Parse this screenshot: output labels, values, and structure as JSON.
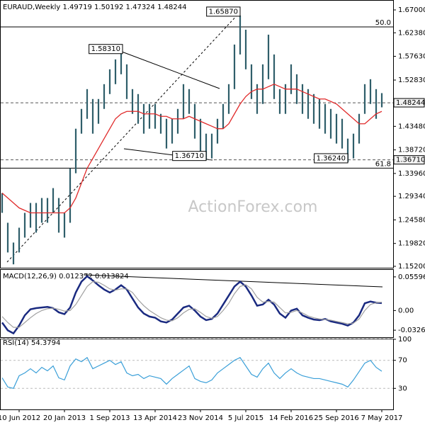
{
  "chart_data": [
    {
      "type": "hlbar",
      "title": "EURAUD,Weekly  1.49719 1.50192 1.47324 1.48244",
      "watermark": "ActionForex.com",
      "categories": [
        null,
        null,
        null,
        "10 Jun 2012",
        null,
        null,
        null,
        null,
        null,
        null,
        null,
        "20 Jan 2013",
        null,
        null,
        null,
        null,
        null,
        null,
        null,
        "1 Sep 2013",
        null,
        null,
        null,
        null,
        null,
        null,
        null,
        "13 Apr 2014",
        null,
        null,
        null,
        null,
        null,
        null,
        null,
        "23 Nov 2014",
        null,
        null,
        null,
        null,
        null,
        null,
        null,
        "5 Jul 2015",
        null,
        null,
        null,
        null,
        null,
        null,
        null,
        "14 Feb 2016",
        null,
        null,
        null,
        null,
        null,
        null,
        null,
        "25 Sep 2016",
        null,
        null,
        null,
        null,
        null,
        null,
        null,
        "7 May 2017"
      ],
      "high": [
        1.3,
        1.24,
        1.2,
        1.23,
        1.26,
        1.28,
        1.28,
        1.29,
        1.29,
        1.31,
        1.29,
        1.26,
        1.35,
        1.43,
        1.47,
        1.51,
        1.49,
        1.49,
        1.52,
        1.55,
        1.57,
        1.5831,
        1.56,
        1.51,
        1.5,
        1.48,
        1.48,
        1.48,
        1.46,
        1.45,
        1.45,
        1.47,
        1.52,
        1.51,
        1.48,
        1.45,
        1.42,
        1.42,
        1.45,
        1.48,
        1.52,
        1.6,
        1.6587,
        1.63,
        1.56,
        1.52,
        1.56,
        1.62,
        1.58,
        1.51,
        1.52,
        1.56,
        1.54,
        1.52,
        1.51,
        1.5,
        1.49,
        1.48,
        1.47,
        1.46,
        1.45,
        1.41,
        1.42,
        1.46,
        1.52,
        1.53,
        1.51,
        1.50192
      ],
      "low": [
        1.26,
        1.18,
        1.156,
        1.18,
        1.21,
        1.23,
        1.22,
        1.24,
        1.24,
        1.26,
        1.22,
        1.21,
        1.24,
        1.34,
        1.42,
        1.45,
        1.42,
        1.44,
        1.47,
        1.5,
        1.52,
        1.54,
        1.49,
        1.46,
        1.44,
        1.42,
        1.43,
        1.43,
        1.42,
        1.39,
        1.4,
        1.42,
        1.45,
        1.46,
        1.41,
        1.38,
        1.3671,
        1.37,
        1.4,
        1.43,
        1.46,
        1.51,
        1.58,
        1.55,
        1.49,
        1.46,
        1.48,
        1.53,
        1.49,
        1.46,
        1.46,
        1.5,
        1.48,
        1.46,
        1.45,
        1.44,
        1.43,
        1.42,
        1.41,
        1.4,
        1.39,
        1.3624,
        1.37,
        1.4,
        1.46,
        1.48,
        1.45,
        1.47324
      ],
      "color": "#2f5e6a",
      "ma": {
        "color": "#e02a2a",
        "values": [
          1.3,
          1.29,
          1.28,
          1.27,
          1.265,
          1.26,
          1.26,
          1.26,
          1.26,
          1.26,
          1.26,
          1.26,
          1.27,
          1.29,
          1.32,
          1.35,
          1.37,
          1.39,
          1.41,
          1.43,
          1.45,
          1.46,
          1.465,
          1.465,
          1.465,
          1.46,
          1.46,
          1.46,
          1.455,
          1.455,
          1.45,
          1.45,
          1.45,
          1.455,
          1.45,
          1.445,
          1.44,
          1.435,
          1.43,
          1.43,
          1.44,
          1.46,
          1.48,
          1.495,
          1.505,
          1.51,
          1.51,
          1.515,
          1.52,
          1.515,
          1.51,
          1.51,
          1.51,
          1.505,
          1.5,
          1.495,
          1.49,
          1.49,
          1.485,
          1.48,
          1.47,
          1.46,
          1.45,
          1.44,
          1.44,
          1.45,
          1.46,
          1.465
        ]
      },
      "ylim": [
        1.1491,
        1.6886
      ],
      "yticks": [
        {
          "value": 1.67,
          "label": "1.67000"
        },
        {
          "value": 1.6238,
          "label": "1.62380"
        },
        {
          "value": 1.5763,
          "label": "1.57630"
        },
        {
          "value": 1.5283,
          "label": "1.52830"
        },
        {
          "value": 1.4348,
          "label": "1.43480"
        },
        {
          "value": 1.3872,
          "label": "1.38720"
        },
        {
          "value": 1.3396,
          "label": "1.33960"
        },
        {
          "value": 1.2934,
          "label": "1.29340"
        },
        {
          "value": 1.2458,
          "label": "1.24580"
        },
        {
          "value": 1.1982,
          "label": "1.19820"
        },
        {
          "value": 1.152,
          "label": "1.15200"
        }
      ],
      "price_tags": [
        {
          "value": 1.48244,
          "label": "1.48244"
        },
        {
          "value": 1.3671,
          "label": "1.36710"
        }
      ],
      "annotations": [
        {
          "value": 1.6587,
          "label": "1.65870"
        },
        {
          "value": 1.5831,
          "label": "1.58310"
        },
        {
          "value": 1.3671,
          "label": "1.36710"
        },
        {
          "value": 1.3624,
          "label": "1.36240"
        }
      ],
      "levels": [
        {
          "value": 1.6357,
          "label": "50.0"
        },
        {
          "value": 1.3504,
          "label": "61.8"
        }
      ]
    },
    {
      "type": "line",
      "title": "MACD(12,26,9) 0.012372 0.013824",
      "series": [
        {
          "color": "#1a2a80",
          "values": [
            -0.02,
            -0.033,
            -0.038,
            -0.025,
            -0.008,
            0.002,
            0.004,
            0.005,
            0.006,
            0.004,
            -0.003,
            -0.006,
            0.005,
            0.03,
            0.048,
            0.057,
            0.05,
            0.042,
            0.035,
            0.03,
            0.035,
            0.042,
            0.035,
            0.02,
            0.005,
            -0.005,
            -0.01,
            -0.012,
            -0.018,
            -0.02,
            -0.015,
            -0.005,
            0.005,
            0.008,
            0.0,
            -0.01,
            -0.016,
            -0.014,
            -0.005,
            0.01,
            0.025,
            0.04,
            0.048,
            0.04,
            0.025,
            0.008,
            0.01,
            0.018,
            0.01,
            -0.005,
            -0.012,
            0.0,
            0.003,
            -0.008,
            -0.012,
            -0.015,
            -0.016,
            -0.014,
            -0.018,
            -0.02,
            -0.022,
            -0.025,
            -0.02,
            -0.008,
            0.012,
            0.015,
            0.013,
            0.012372
          ]
        },
        {
          "color": "#a0a0a0",
          "values": [
            -0.01,
            -0.02,
            -0.028,
            -0.028,
            -0.02,
            -0.012,
            -0.005,
            0.0,
            0.003,
            0.004,
            0.002,
            -0.001,
            0.0,
            0.01,
            0.025,
            0.04,
            0.048,
            0.047,
            0.042,
            0.036,
            0.034,
            0.036,
            0.036,
            0.03,
            0.018,
            0.008,
            0.0,
            -0.006,
            -0.012,
            -0.016,
            -0.017,
            -0.012,
            -0.004,
            0.002,
            0.003,
            -0.003,
            -0.01,
            -0.013,
            -0.01,
            0.0,
            0.012,
            0.028,
            0.04,
            0.043,
            0.036,
            0.022,
            0.014,
            0.015,
            0.014,
            0.005,
            -0.004,
            -0.003,
            0.0,
            -0.004,
            -0.009,
            -0.012,
            -0.014,
            -0.015,
            -0.016,
            -0.018,
            -0.02,
            -0.022,
            -0.021,
            -0.014,
            0.0,
            0.01,
            0.013,
            0.013824
          ]
        }
      ],
      "ylim": [
        -0.0443,
        0.0676
      ],
      "yticks": [
        0.055965,
        {
          "value": 0,
          "label": "0.00"
        },
        -0.03269
      ]
    },
    {
      "type": "line",
      "title": "RSI(14) 54.3794",
      "series": [
        {
          "color": "#3a9fd8",
          "values": [
            45,
            32,
            30,
            48,
            52,
            58,
            52,
            60,
            55,
            62,
            45,
            42,
            62,
            72,
            68,
            74,
            58,
            62,
            66,
            70,
            64,
            68,
            52,
            48,
            50,
            44,
            48,
            46,
            44,
            36,
            44,
            50,
            56,
            62,
            44,
            40,
            38,
            42,
            52,
            58,
            64,
            70,
            74,
            62,
            50,
            46,
            58,
            66,
            52,
            44,
            52,
            58,
            52,
            48,
            46,
            44,
            44,
            42,
            40,
            38,
            36,
            32,
            42,
            54,
            66,
            70,
            60,
            54.3794
          ]
        }
      ],
      "ylim": [
        0,
        100
      ],
      "yticks": [
        100,
        70,
        30
      ],
      "grid": true
    }
  ]
}
